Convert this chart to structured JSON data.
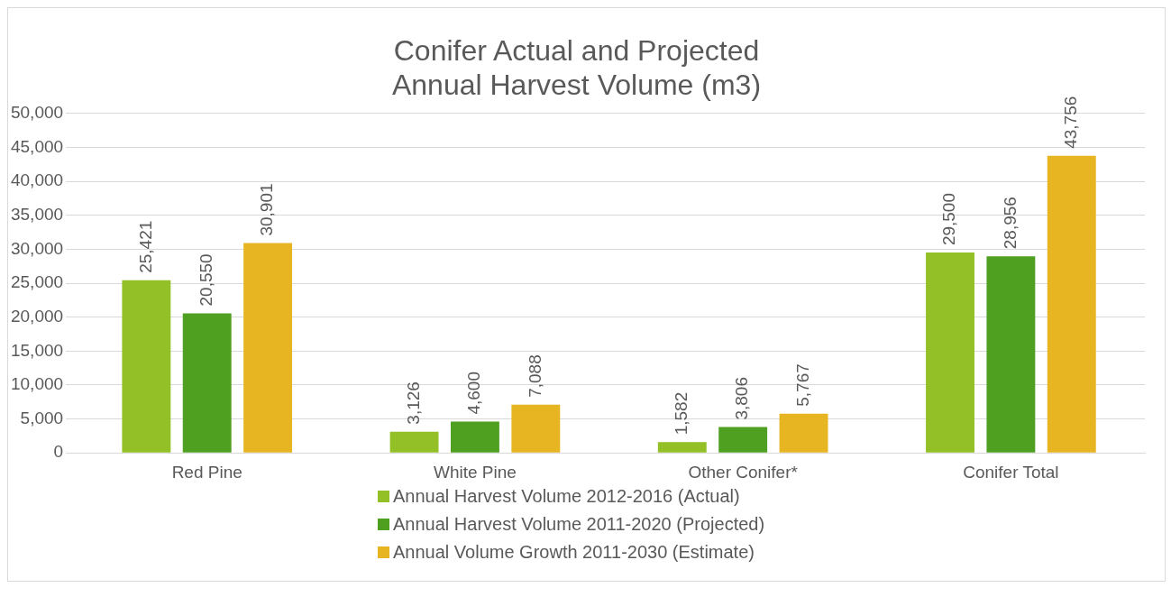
{
  "chart_data": {
    "type": "bar",
    "title": "Conifer Actual and Projected\nAnnual Harvest Volume (m3)",
    "categories": [
      "Red Pine",
      "White Pine",
      "Other Conifer*",
      "Conifer Total"
    ],
    "series": [
      {
        "name": "Annual Harvest Volume 2012-2016 (Actual)",
        "color": "#92c026",
        "values": [
          25421,
          3126,
          1582,
          29500
        ],
        "value_labels": [
          "25,421",
          "3,126",
          "1,582",
          "29,500"
        ]
      },
      {
        "name": "Annual Harvest Volume 2011-2020 (Projected)",
        "color": "#4fa021",
        "values": [
          20550,
          4600,
          3806,
          28956
        ],
        "value_labels": [
          "20,550",
          "4,600",
          "3,806",
          "28,956"
        ]
      },
      {
        "name": "Annual Volume Growth 2011-2030 (Estimate)",
        "color": "#e6b521",
        "values": [
          30901,
          7088,
          5767,
          43756
        ],
        "value_labels": [
          "30,901",
          "7,088",
          "5,767",
          "43,756"
        ]
      }
    ],
    "ylim": [
      0,
      50000
    ],
    "yticks": [
      0,
      {
        "value": 5000,
        "label": "5,000"
      },
      {
        "value": 10000,
        "label": "10,000"
      },
      {
        "value": 15000,
        "label": "15,000"
      },
      {
        "value": 20000,
        "label": "20,000"
      },
      {
        "value": 25000,
        "label": "25,000"
      },
      {
        "value": 30000,
        "label": "30,000"
      },
      {
        "value": 35000,
        "label": "35,000"
      },
      {
        "value": 40000,
        "label": "40,000"
      },
      {
        "value": 45000,
        "label": "45,000"
      },
      {
        "value": 50000,
        "label": "50,000"
      }
    ],
    "grid": "y",
    "legend": "bottom"
  }
}
